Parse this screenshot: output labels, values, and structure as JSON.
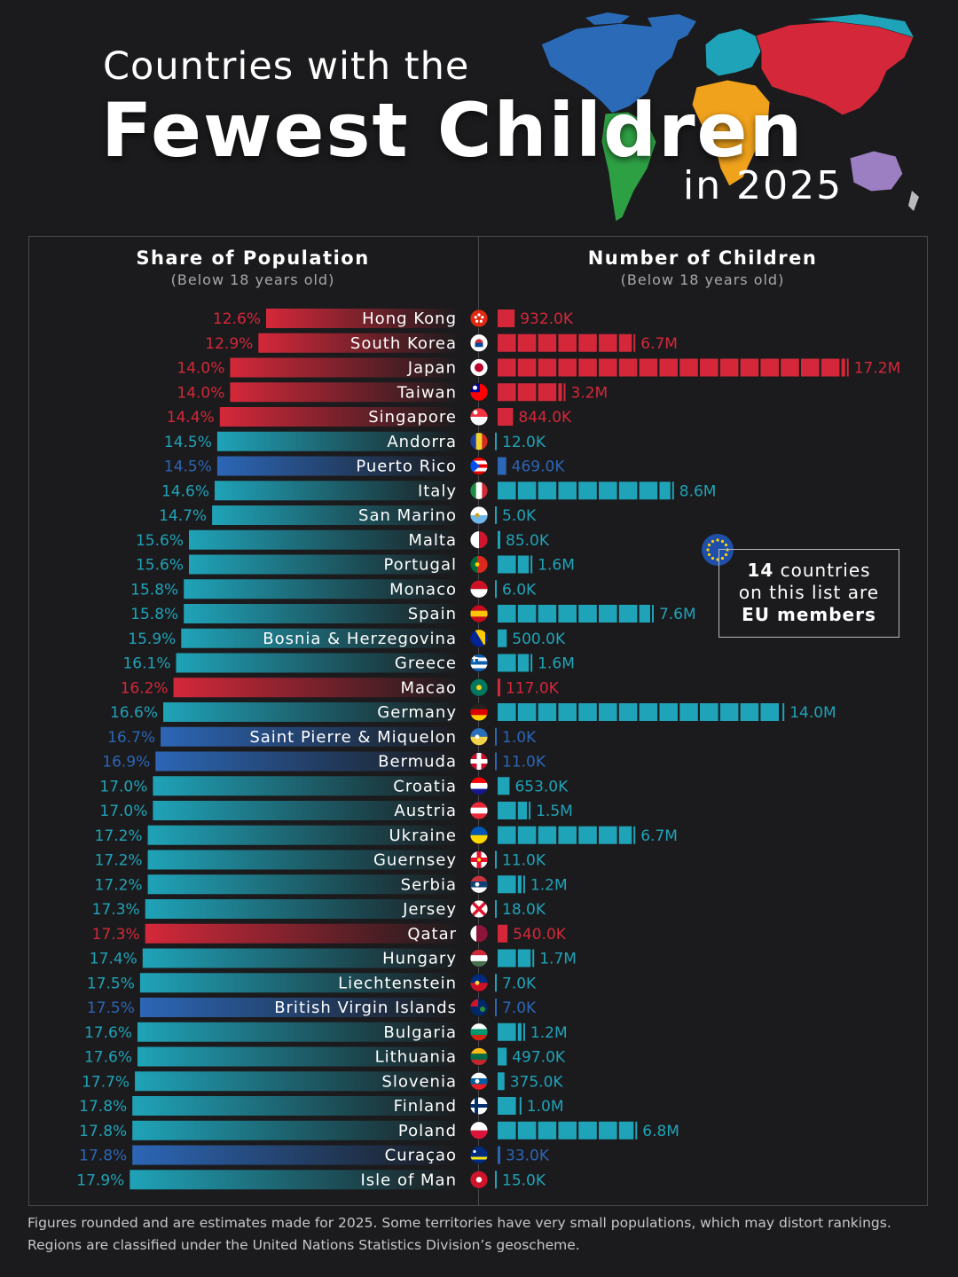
{
  "title": {
    "line1": "Countries with the",
    "line2": "Fewest Children",
    "line3": "in 2025"
  },
  "left_header": {
    "title": "Share of Population",
    "subtitle": "(Below 18 years old)"
  },
  "right_header": {
    "title": "Number of Children",
    "subtitle": "(Below 18 years old)"
  },
  "callout": {
    "count": "14",
    "line1_rest": " countries",
    "line2": "on this list are",
    "line3": "EU members"
  },
  "footnote": {
    "line1": "Figures rounded and are estimates made for 2025. Some territories have very small populations, which may distort rankings.",
    "line2": "Regions are classified under the United Nations Statistics Division’s geoscheme."
  },
  "colors": {
    "red": "#d4283a",
    "teal": "#1fa3b8",
    "blue": "#2c66b6",
    "background": "#1b1b1d"
  },
  "map_regions": [
    "north-america",
    "south-america",
    "europe",
    "africa",
    "asia",
    "oceania"
  ],
  "chart_data": {
    "type": "bar",
    "scale_note": "Each block in the right column represents about 1 million children",
    "categories": [
      "Hong Kong",
      "South Korea",
      "Japan",
      "Taiwan",
      "Singapore",
      "Andorra",
      "Puerto Rico",
      "Italy",
      "San Marino",
      "Malta",
      "Portugal",
      "Monaco",
      "Spain",
      "Bosnia & Herzegovina",
      "Greece",
      "Macao",
      "Germany",
      "Saint Pierre & Miquelon",
      "Bermuda",
      "Croatia",
      "Austria",
      "Ukraine",
      "Guernsey",
      "Serbia",
      "Jersey",
      "Qatar",
      "Hungary",
      "Liechtenstein",
      "British Virgin Islands",
      "Bulgaria",
      "Lithuania",
      "Slovenia",
      "Finland",
      "Poland",
      "Curaçao",
      "Isle of Man"
    ],
    "share_labels": [
      "12.6%",
      "12.9%",
      "14.0%",
      "14.0%",
      "14.4%",
      "14.5%",
      "14.5%",
      "14.6%",
      "14.7%",
      "15.6%",
      "15.6%",
      "15.8%",
      "15.8%",
      "15.9%",
      "16.1%",
      "16.2%",
      "16.6%",
      "16.7%",
      "16.9%",
      "17.0%",
      "17.0%",
      "17.2%",
      "17.2%",
      "17.2%",
      "17.3%",
      "17.3%",
      "17.4%",
      "17.5%",
      "17.5%",
      "17.6%",
      "17.6%",
      "17.7%",
      "17.8%",
      "17.8%",
      "17.8%",
      "17.9%"
    ],
    "share_values": [
      12.6,
      12.9,
      14.0,
      14.0,
      14.4,
      14.5,
      14.5,
      14.6,
      14.7,
      15.6,
      15.6,
      15.8,
      15.8,
      15.9,
      16.1,
      16.2,
      16.6,
      16.7,
      16.9,
      17.0,
      17.0,
      17.2,
      17.2,
      17.2,
      17.3,
      17.3,
      17.4,
      17.5,
      17.5,
      17.6,
      17.6,
      17.7,
      17.8,
      17.8,
      17.8,
      17.9
    ],
    "children_labels": [
      "932.0K",
      "6.7M",
      "17.2M",
      "3.2M",
      "844.0K",
      "12.0K",
      "469.0K",
      "8.6M",
      "5.0K",
      "85.0K",
      "1.6M",
      "6.0K",
      "7.6M",
      "500.0K",
      "1.6M",
      "117.0K",
      "14.0M",
      "1.0K",
      "11.0K",
      "653.0K",
      "1.5M",
      "6.7M",
      "11.0K",
      "1.2M",
      "18.0K",
      "540.0K",
      "1.7M",
      "7.0K",
      "7.0K",
      "1.2M",
      "497.0K",
      "375.0K",
      "1.0M",
      "6.8M",
      "33.0K",
      "15.0K"
    ],
    "children_millions": [
      0.932,
      6.7,
      17.2,
      3.2,
      0.844,
      0.012,
      0.469,
      8.6,
      0.005,
      0.085,
      1.6,
      0.006,
      7.6,
      0.5,
      1.6,
      0.117,
      14.0,
      0.001,
      0.011,
      0.653,
      1.5,
      6.7,
      0.011,
      1.2,
      0.018,
      0.54,
      1.7,
      0.007,
      0.007,
      1.2,
      0.497,
      0.375,
      1.0,
      6.8,
      0.033,
      0.015
    ],
    "region": [
      "asia",
      "asia",
      "asia",
      "asia",
      "asia",
      "europe",
      "americas",
      "europe",
      "europe",
      "europe",
      "europe",
      "europe",
      "europe",
      "europe",
      "europe",
      "asia",
      "europe",
      "americas",
      "americas",
      "europe",
      "europe",
      "europe",
      "europe",
      "europe",
      "europe",
      "asia",
      "europe",
      "europe",
      "americas",
      "europe",
      "europe",
      "europe",
      "europe",
      "europe",
      "americas",
      "europe"
    ],
    "flags": [
      {
        "type": "hk"
      },
      {
        "type": "kr"
      },
      {
        "type": "jp"
      },
      {
        "type": "tw"
      },
      {
        "type": "sg"
      },
      {
        "type": "v",
        "c": [
          "#1a3f9c",
          "#f5d130",
          "#d52b1e"
        ]
      },
      {
        "type": "pr"
      },
      {
        "type": "v",
        "c": [
          "#1c8f45",
          "#ffffff",
          "#ce2b37"
        ]
      },
      {
        "type": "h",
        "c": [
          "#ffffff",
          "#6fb7e9"
        ],
        "dot": "#c9a227"
      },
      {
        "type": "v",
        "c": [
          "#ffffff",
          "#cf142b"
        ]
      },
      {
        "type": "v2",
        "c": [
          "#046a38",
          "#da291c"
        ],
        "dot": "#ffd300"
      },
      {
        "type": "h",
        "c": [
          "#ce1126",
          "#ffffff"
        ]
      },
      {
        "type": "h3",
        "c": [
          "#c60b1e",
          "#ffc400",
          "#c60b1e"
        ]
      },
      {
        "type": "ba"
      },
      {
        "type": "gr"
      },
      {
        "type": "mo"
      },
      {
        "type": "h3",
        "c": [
          "#222222",
          "#dd0000",
          "#ffce00"
        ]
      },
      {
        "type": "h",
        "c": [
          "#2a6ebb",
          "#f3d34a"
        ],
        "dot": "#ffffff"
      },
      {
        "type": "cross",
        "c": "#c8102e",
        "bg": "#c8102e",
        "fg": "#ffffff"
      },
      {
        "type": "h3",
        "c": [
          "#ff0000",
          "#ffffff",
          "#171796"
        ],
        "dot": "#ffffff"
      },
      {
        "type": "h3",
        "c": [
          "#ed2939",
          "#ffffff",
          "#ed2939"
        ]
      },
      {
        "type": "h",
        "c": [
          "#0057b7",
          "#ffd700"
        ]
      },
      {
        "type": "cross",
        "bg": "#ffffff",
        "fg": "#e8112d",
        "dot": "#f9dd16"
      },
      {
        "type": "h3",
        "c": [
          "#c6363c",
          "#0c4076",
          "#ffffff"
        ],
        "dot": "#ffffff"
      },
      {
        "type": "x",
        "bg": "#ffffff",
        "fg": "#df112d"
      },
      {
        "type": "qa"
      },
      {
        "type": "h3",
        "c": [
          "#ce2939",
          "#ffffff",
          "#477050"
        ]
      },
      {
        "type": "h",
        "c": [
          "#002b7f",
          "#ce1126"
        ],
        "dot": "#ffd83d"
      },
      {
        "type": "bv"
      },
      {
        "type": "h3",
        "c": [
          "#ffffff",
          "#00966e",
          "#d62612"
        ]
      },
      {
        "type": "h3",
        "c": [
          "#fdb913",
          "#006a44",
          "#c1272d"
        ]
      },
      {
        "type": "h3",
        "c": [
          "#ffffff",
          "#005da4",
          "#ed1c24"
        ],
        "dot": "#ffffff"
      },
      {
        "type": "fi"
      },
      {
        "type": "h",
        "c": [
          "#ffffff",
          "#dc143c"
        ]
      },
      {
        "type": "cw"
      },
      {
        "type": "im"
      }
    ]
  }
}
